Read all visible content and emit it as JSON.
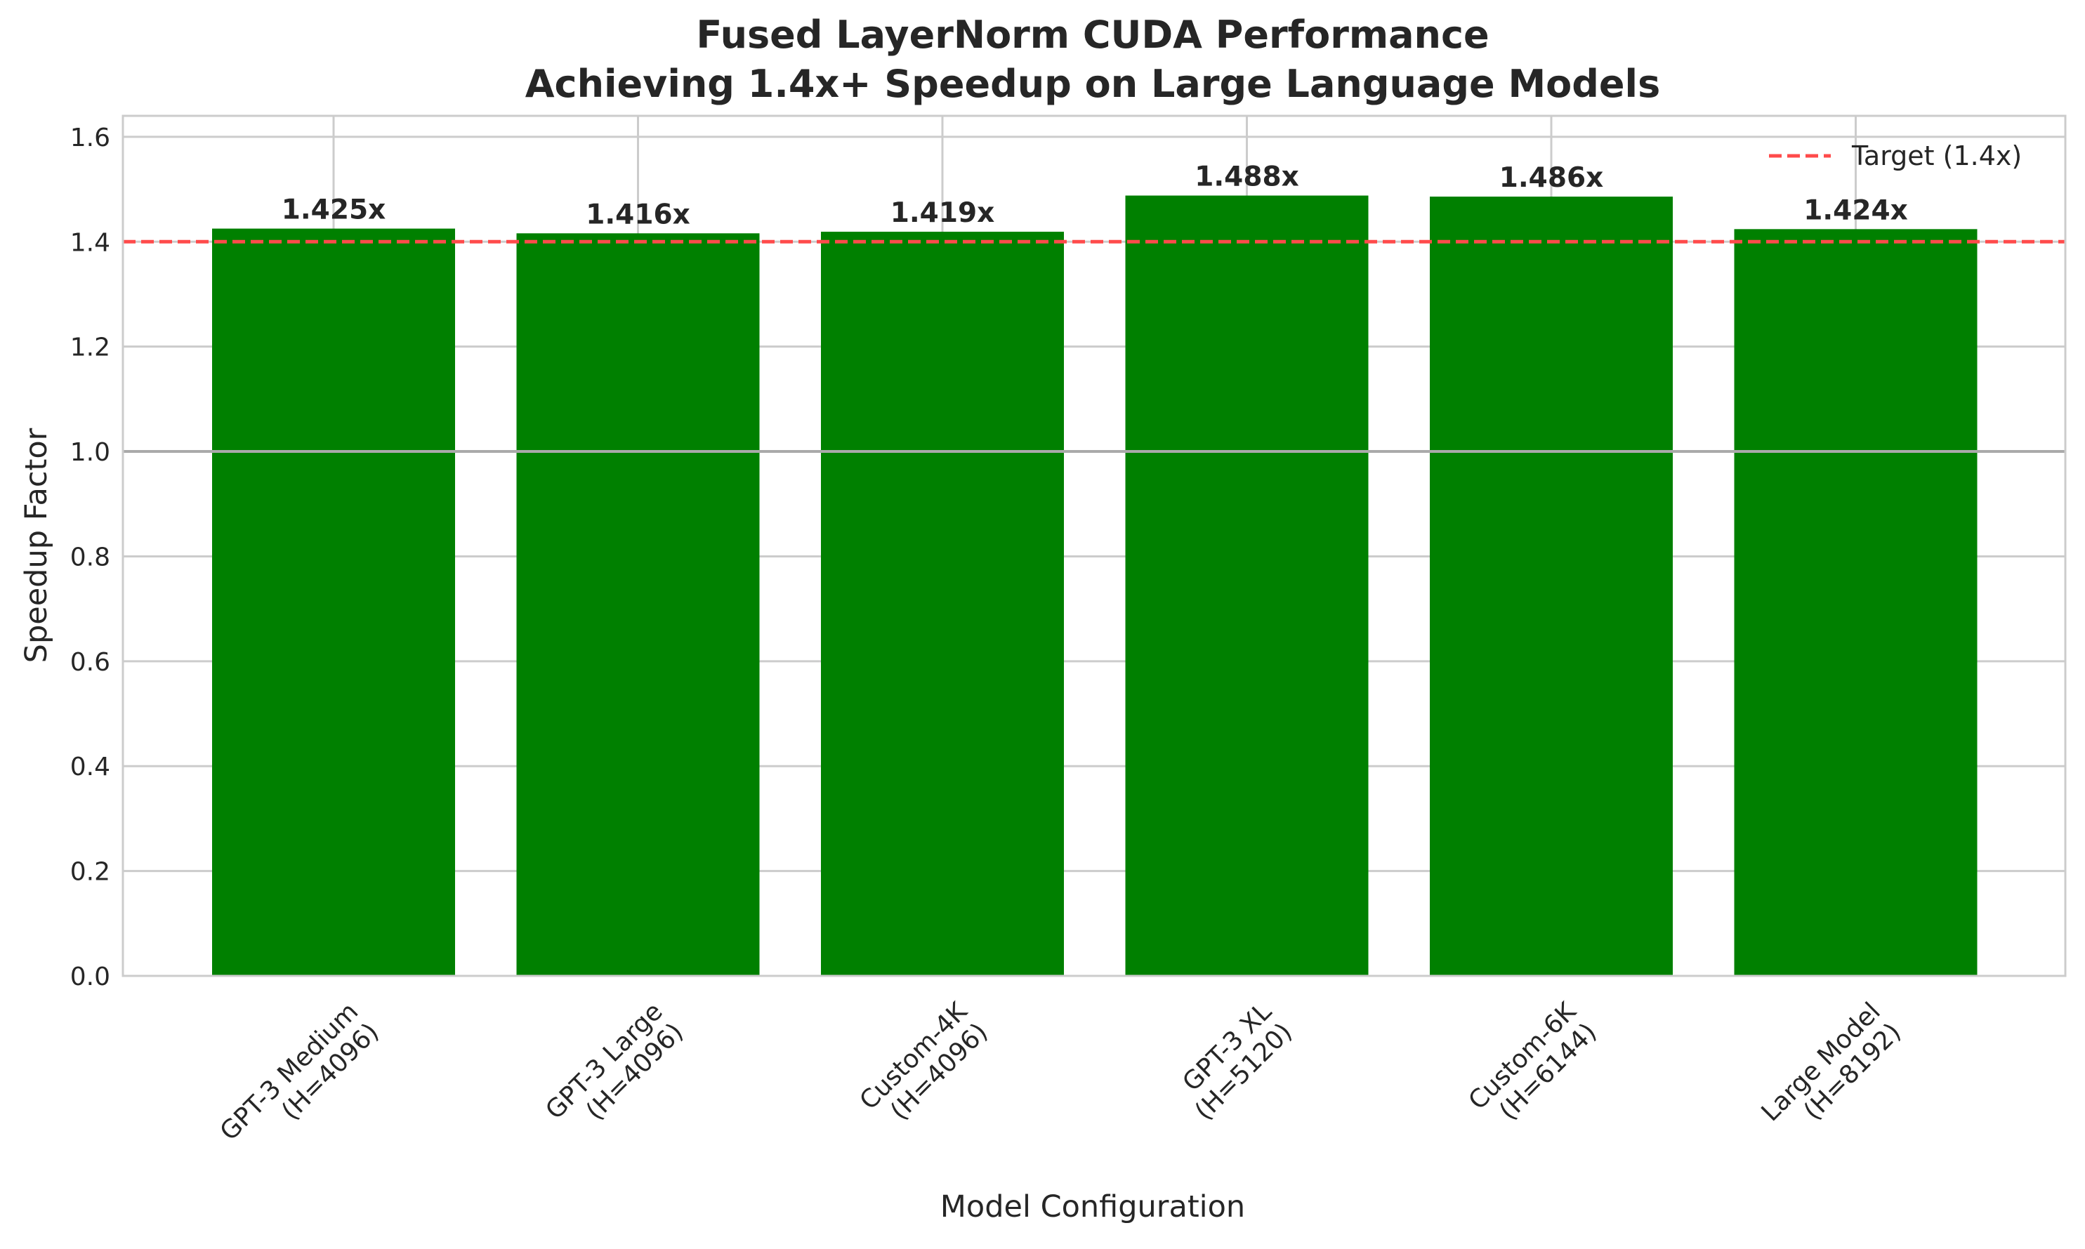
{
  "chart_data": {
    "type": "bar",
    "title": "Fused LayerNorm CUDA Performance",
    "subtitle": "Achieving 1.4x+ Speedup on Large Language Models",
    "xlabel": "Model Configuration",
    "ylabel": "Speedup Factor",
    "categories": [
      [
        "GPT-3 Medium",
        "(H=4096)"
      ],
      [
        "GPT-3 Large",
        "(H=4096)"
      ],
      [
        "Custom-4K",
        "(H=4096)"
      ],
      [
        "GPT-3 XL",
        "(H=5120)"
      ],
      [
        "Custom-6K",
        "(H=6144)"
      ],
      [
        "Large Model",
        "(H=8192)"
      ]
    ],
    "values": [
      1.425,
      1.416,
      1.419,
      1.488,
      1.486,
      1.424
    ],
    "data_labels": [
      "1.425x",
      "1.416x",
      "1.419x",
      "1.488x",
      "1.486x",
      "1.424x"
    ],
    "ylim": [
      0,
      1.64
    ],
    "yticks": [
      0.0,
      0.2,
      0.4,
      0.6,
      0.8,
      1.0,
      1.2,
      1.4,
      1.6
    ],
    "ytick_labels": [
      "0.0",
      "0.2",
      "0.4",
      "0.6",
      "0.8",
      "1.0",
      "1.2",
      "1.4",
      "1.6"
    ],
    "grid": true,
    "bar_color": "#008000",
    "reference_lines": [
      {
        "y": 1.0,
        "color": "#aaaaaa",
        "style": "solid"
      },
      {
        "y": 1.4,
        "color": "#ff4b4b",
        "style": "dashed",
        "label": "Target (1.4x)"
      }
    ],
    "legend": {
      "position": "top-right",
      "entries": [
        "Target (1.4x)"
      ]
    }
  }
}
